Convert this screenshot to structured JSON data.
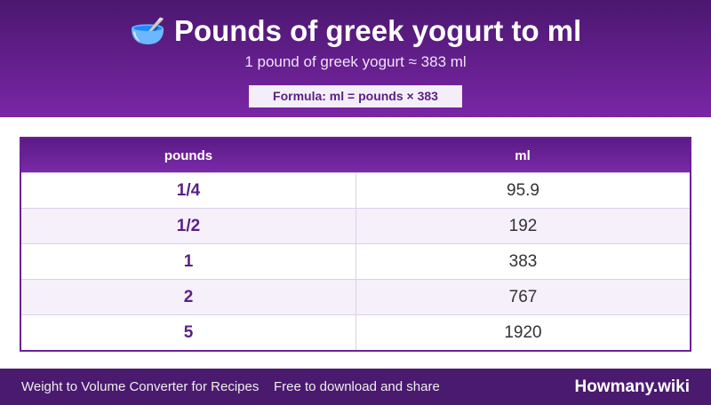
{
  "header": {
    "icon": "🥣",
    "title": "Pounds of greek yogurt to ml",
    "subtitle": "1 pound of greek yogurt ≈ 383 ml",
    "formula": "Formula: ml = pounds × 383"
  },
  "table": {
    "columns": [
      "pounds",
      "ml"
    ],
    "rows": [
      [
        "1/4",
        95.9
      ],
      [
        "1/2",
        192
      ],
      [
        "1",
        383
      ],
      [
        "2",
        767
      ],
      [
        "5",
        1920
      ]
    ]
  },
  "footer": {
    "left": "Weight to Volume Converter for Recipes",
    "middle": "Free to download and share",
    "brand": "Howmany.wiki"
  }
}
